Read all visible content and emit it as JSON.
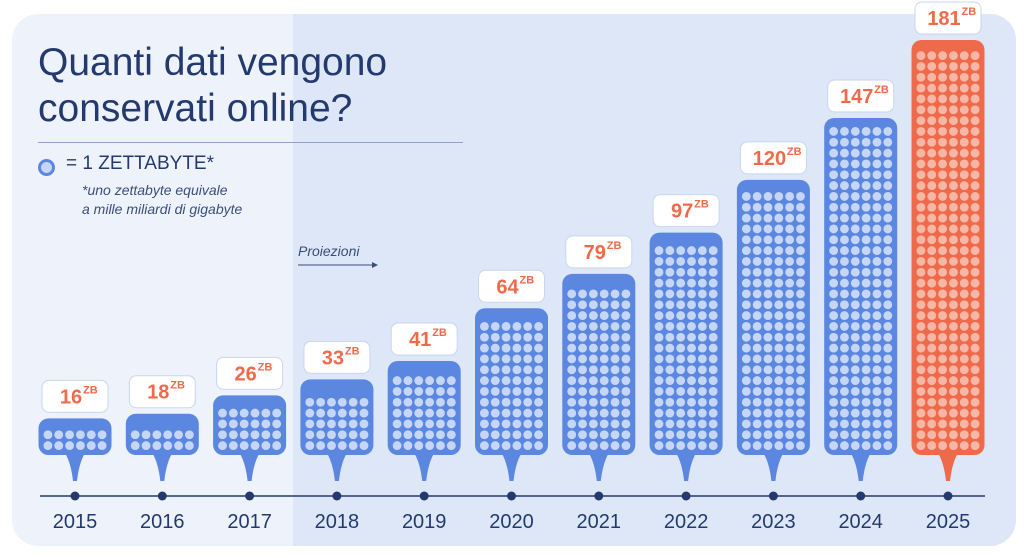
{
  "title": "Quanti dati vengono conservati online?",
  "legend": {
    "text": "= 1 ZETTABYTE*",
    "note_line1": "*uno zettabyte equivale",
    "note_line2": "a mille miliardi di gigabyte"
  },
  "projection_label": "Proiezioni",
  "colors": {
    "actual": "#5b87e0",
    "actual_fill": "#c5d6f6",
    "forecast": "#ef6a4a",
    "forecast_fill": "#f7b7a6",
    "value_text": "#ef6a4a",
    "axis": "#243a6e"
  },
  "chart_data": {
    "type": "bar",
    "title": "Quanti dati vengono conservati online?",
    "unit": "ZB",
    "categories": [
      "2015",
      "2016",
      "2017",
      "2018",
      "2019",
      "2020",
      "2021",
      "2022",
      "2023",
      "2024",
      "2025"
    ],
    "values": [
      16,
      18,
      26,
      33,
      41,
      64,
      79,
      97,
      120,
      147,
      181
    ],
    "projection_from": "2018",
    "highlight": "2025",
    "value_labels": [
      "16",
      "18",
      "26",
      "33",
      "41",
      "64",
      "79",
      "97",
      "120",
      "147",
      "181"
    ],
    "ylim": [
      0,
      181
    ],
    "grid": false,
    "legend": "top-left"
  }
}
